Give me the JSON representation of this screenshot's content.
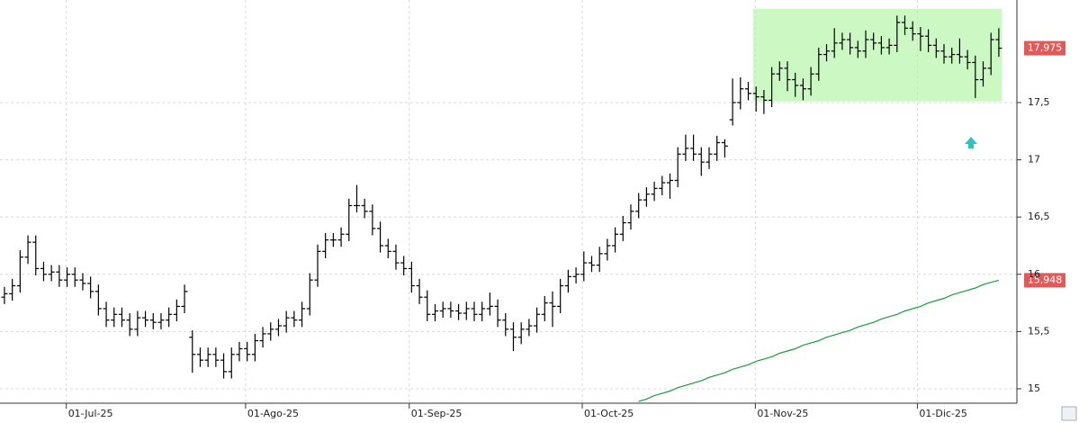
{
  "chart_data": {
    "type": "ohlc",
    "color": "#000000",
    "open": [
      15.8,
      15.83,
      15.9,
      16.15,
      16.28,
      16.05,
      16.0,
      16.02,
      15.95,
      16.0,
      15.95,
      15.92,
      15.85,
      15.7,
      15.6,
      15.65,
      15.6,
      15.52,
      15.62,
      15.6,
      15.58,
      15.6,
      15.65,
      15.72,
      15.45,
      15.3,
      15.25,
      15.3,
      15.25,
      15.15,
      15.3,
      15.35,
      15.3,
      15.42,
      15.48,
      15.52,
      15.55,
      15.62,
      15.6,
      15.7,
      15.95,
      16.2,
      16.3,
      16.3,
      16.35,
      16.6,
      16.6,
      16.55,
      16.4,
      16.25,
      16.2,
      16.1,
      16.05,
      15.9,
      15.8,
      15.65,
      15.68,
      15.7,
      15.68,
      15.66,
      15.7,
      15.65,
      15.7,
      15.72,
      15.6,
      15.52,
      15.45,
      15.52,
      15.55,
      15.65,
      15.75,
      15.72,
      15.9,
      15.98,
      16.0,
      16.1,
      16.08,
      16.18,
      16.25,
      16.35,
      16.45,
      16.55,
      16.65,
      16.7,
      16.75,
      16.8,
      16.82,
      17.05,
      17.1,
      17.05,
      16.98,
      17.05,
      17.15,
      17.35,
      17.5,
      17.62,
      17.58,
      17.55,
      17.52,
      17.75,
      17.8,
      17.7,
      17.65,
      17.62,
      17.75,
      17.92,
      17.95,
      18.02,
      18.05,
      17.98,
      17.95,
      18.05,
      18.02,
      17.98,
      18.0,
      18.2,
      18.15,
      18.1,
      18.08,
      18.0,
      17.95,
      17.9,
      17.92,
      17.9,
      17.85,
      17.7,
      17.8,
      18.05
    ],
    "high": [
      15.89,
      15.96,
      16.21,
      16.34,
      16.34,
      16.11,
      16.08,
      16.08,
      16.06,
      16.06,
      16.01,
      15.98,
      15.91,
      15.76,
      15.71,
      15.71,
      15.66,
      15.68,
      15.68,
      15.66,
      15.66,
      15.71,
      15.78,
      15.91,
      15.51,
      15.36,
      15.36,
      15.36,
      15.31,
      15.36,
      15.41,
      15.41,
      15.48,
      15.54,
      15.58,
      15.61,
      15.68,
      15.68,
      15.76,
      16.01,
      16.26,
      16.36,
      16.36,
      16.41,
      16.66,
      16.78,
      16.66,
      16.61,
      16.46,
      16.31,
      16.26,
      16.16,
      16.11,
      15.96,
      15.86,
      15.74,
      15.76,
      15.76,
      15.74,
      15.76,
      15.76,
      15.76,
      15.84,
      15.78,
      15.66,
      15.58,
      15.58,
      15.61,
      15.71,
      15.81,
      15.85,
      15.96,
      16.04,
      16.06,
      16.2,
      16.16,
      16.24,
      16.31,
      16.41,
      16.51,
      16.61,
      16.71,
      16.76,
      16.81,
      16.86,
      16.88,
      17.11,
      17.22,
      17.22,
      17.11,
      17.11,
      17.21,
      17.18,
      17.71,
      17.72,
      17.68,
      17.64,
      17.61,
      17.81,
      17.86,
      17.86,
      17.76,
      17.71,
      17.81,
      17.98,
      18.01,
      18.15,
      18.11,
      18.11,
      18.04,
      18.13,
      18.11,
      18.08,
      18.06,
      18.26,
      18.26,
      18.21,
      18.16,
      18.14,
      18.06,
      18.01,
      17.98,
      18.06,
      17.96,
      17.91,
      17.86,
      18.11,
      18.15
    ],
    "low": [
      15.74,
      15.77,
      15.84,
      16.09,
      15.99,
      15.94,
      15.94,
      15.89,
      15.89,
      15.89,
      15.86,
      15.79,
      15.64,
      15.54,
      15.54,
      15.54,
      15.46,
      15.46,
      15.54,
      15.52,
      15.52,
      15.54,
      15.59,
      15.66,
      15.14,
      15.19,
      15.19,
      15.19,
      15.09,
      15.09,
      15.24,
      15.24,
      15.24,
      15.36,
      15.42,
      15.46,
      15.49,
      15.54,
      15.54,
      15.64,
      15.89,
      16.14,
      16.24,
      16.24,
      16.29,
      16.54,
      16.49,
      16.34,
      16.19,
      16.14,
      16.04,
      15.99,
      15.84,
      15.74,
      15.59,
      15.59,
      15.62,
      15.62,
      15.6,
      15.6,
      15.59,
      15.59,
      15.64,
      15.54,
      15.46,
      15.33,
      15.39,
      15.46,
      15.49,
      15.59,
      15.54,
      15.66,
      15.84,
      15.92,
      15.94,
      16.02,
      16.02,
      16.12,
      16.19,
      16.29,
      16.39,
      16.49,
      16.59,
      16.64,
      16.69,
      16.66,
      16.76,
      16.99,
      16.99,
      16.86,
      16.92,
      16.99,
      17.02,
      17.3,
      17.44,
      17.52,
      17.42,
      17.4,
      17.46,
      17.69,
      17.6,
      17.55,
      17.52,
      17.56,
      17.69,
      17.86,
      17.89,
      17.96,
      17.92,
      17.89,
      17.89,
      17.96,
      17.92,
      17.92,
      17.94,
      18.09,
      18.04,
      17.95,
      17.94,
      17.89,
      17.84,
      17.84,
      17.84,
      17.79,
      17.54,
      17.64,
      17.74,
      17.9
    ],
    "close": [
      15.83,
      15.9,
      16.15,
      16.28,
      16.05,
      16.0,
      16.02,
      15.95,
      16.0,
      15.95,
      15.92,
      15.85,
      15.7,
      15.6,
      15.65,
      15.6,
      15.52,
      15.62,
      15.6,
      15.58,
      15.6,
      15.65,
      15.72,
      15.85,
      15.3,
      15.25,
      15.3,
      15.25,
      15.15,
      15.3,
      15.35,
      15.3,
      15.42,
      15.48,
      15.52,
      15.55,
      15.62,
      15.6,
      15.7,
      15.95,
      16.2,
      16.3,
      16.3,
      16.35,
      16.6,
      16.6,
      16.55,
      16.4,
      16.25,
      16.2,
      16.1,
      16.05,
      15.9,
      15.8,
      15.65,
      15.68,
      15.7,
      15.68,
      15.66,
      15.7,
      15.65,
      15.7,
      15.72,
      15.6,
      15.52,
      15.45,
      15.52,
      15.55,
      15.65,
      15.75,
      15.72,
      15.9,
      15.98,
      16.0,
      16.1,
      16.08,
      16.18,
      16.25,
      16.35,
      16.45,
      16.55,
      16.65,
      16.7,
      16.75,
      16.8,
      16.82,
      17.05,
      17.1,
      17.05,
      16.98,
      17.05,
      17.15,
      17.12,
      17.5,
      17.62,
      17.58,
      17.55,
      17.52,
      17.75,
      17.8,
      17.7,
      17.65,
      17.62,
      17.75,
      17.92,
      17.95,
      18.02,
      18.05,
      17.98,
      17.95,
      18.05,
      18.02,
      17.98,
      18.0,
      18.2,
      18.15,
      18.1,
      18.08,
      18.0,
      17.95,
      17.9,
      17.92,
      17.9,
      17.85,
      17.7,
      17.8,
      18.05,
      17.975
    ],
    "close_label": "17,975",
    "label_color": "#e05a5a",
    "ma": {
      "color": "#1a9e3a",
      "label": "15,948",
      "values": [
        null,
        null,
        null,
        null,
        null,
        null,
        null,
        null,
        null,
        null,
        null,
        null,
        null,
        null,
        null,
        null,
        null,
        null,
        null,
        null,
        null,
        null,
        null,
        null,
        null,
        null,
        null,
        null,
        null,
        null,
        null,
        null,
        null,
        null,
        null,
        null,
        null,
        null,
        null,
        null,
        null,
        null,
        null,
        null,
        null,
        null,
        null,
        null,
        null,
        null,
        null,
        null,
        null,
        null,
        null,
        null,
        null,
        null,
        null,
        null,
        null,
        null,
        null,
        null,
        null,
        null,
        null,
        null,
        null,
        null,
        null,
        null,
        null,
        null,
        null,
        null,
        null,
        null,
        null,
        null,
        null,
        14.89,
        14.91,
        14.94,
        14.96,
        14.98,
        15.01,
        15.03,
        15.05,
        15.07,
        15.1,
        15.12,
        15.14,
        15.17,
        15.19,
        15.21,
        15.24,
        15.26,
        15.28,
        15.31,
        15.33,
        15.35,
        15.38,
        15.4,
        15.42,
        15.45,
        15.47,
        15.49,
        15.51,
        15.54,
        15.56,
        15.58,
        15.61,
        15.63,
        15.65,
        15.68,
        15.7,
        15.72,
        15.75,
        15.77,
        15.79,
        15.82,
        15.84,
        15.86,
        15.88,
        15.91,
        15.93,
        15.948
      ]
    },
    "highlight": {
      "xlim": [
        95.6,
        127.4
      ],
      "ylim": [
        17.51,
        18.32
      ],
      "color": "#ccf8c4"
    },
    "xlim": [
      -0.57,
      129.31
    ],
    "ylim": [
      14.874,
      18.396
    ],
    "xticks": [
      {
        "value": 7.9,
        "label": "01-Jul-25"
      },
      {
        "value": 30.8,
        "label": "01-Ago-25"
      },
      {
        "value": 51.7,
        "label": "01-Sep-25"
      },
      {
        "value": 73.8,
        "label": "01-Oct-25"
      },
      {
        "value": 95.9,
        "label": "01-Nov-25"
      },
      {
        "value": 116.6,
        "label": "01-Dic-25"
      }
    ],
    "yticks": [
      15,
      {
        "value": 15.5,
        "label": "15,5"
      },
      16,
      {
        "value": 16.5,
        "label": "16,5"
      },
      17,
      {
        "value": 17.5,
        "label": "17,5"
      }
    ],
    "grid": true
  }
}
